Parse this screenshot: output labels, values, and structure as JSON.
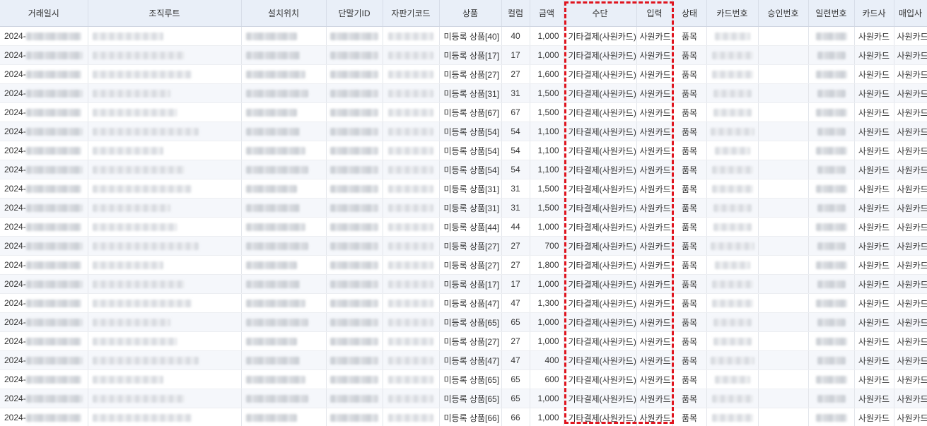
{
  "headers": {
    "datetime": "거래일시",
    "org_route": "조직루트",
    "location": "설치위치",
    "terminal_id": "단말기ID",
    "vending_code": "자판기코드",
    "product": "상품",
    "column": "컬럼",
    "amount": "금액",
    "method": "수단",
    "input": "입력",
    "status": "상태",
    "card_no": "카드번호",
    "approval_no": "승인번호",
    "serial_no": "일련번호",
    "card_company": "카드사",
    "acquirer": "매입사"
  },
  "rows": [
    {
      "date_prefix": "2024-",
      "product": "미등록 상품[40]",
      "column": "40",
      "amount": "1,000",
      "method": "기타결제(사원카드)",
      "input": "사원카드",
      "status": "품목",
      "card_company": "사원카드",
      "acquirer": "사원카드"
    },
    {
      "date_prefix": "2024-",
      "product": "미등록 상품[17]",
      "column": "17",
      "amount": "1,000",
      "method": "기타결제(사원카드)",
      "input": "사원카드",
      "status": "품목",
      "card_company": "사원카드",
      "acquirer": "사원카드"
    },
    {
      "date_prefix": "2024-",
      "product": "미등록 상품[27]",
      "column": "27",
      "amount": "1,600",
      "method": "기타결제(사원카드)",
      "input": "사원카드",
      "status": "품목",
      "card_company": "사원카드",
      "acquirer": "사원카드"
    },
    {
      "date_prefix": "2024-",
      "product": "미등록 상품[31]",
      "column": "31",
      "amount": "1,500",
      "method": "기타결제(사원카드)",
      "input": "사원카드",
      "status": "품목",
      "card_company": "사원카드",
      "acquirer": "사원카드"
    },
    {
      "date_prefix": "2024-",
      "product": "미등록 상품[67]",
      "column": "67",
      "amount": "1,500",
      "method": "기타결제(사원카드)",
      "input": "사원카드",
      "status": "품목",
      "card_company": "사원카드",
      "acquirer": "사원카드"
    },
    {
      "date_prefix": "2024-",
      "product": "미등록 상품[54]",
      "column": "54",
      "amount": "1,100",
      "method": "기타결제(사원카드)",
      "input": "사원카드",
      "status": "품목",
      "card_company": "사원카드",
      "acquirer": "사원카드"
    },
    {
      "date_prefix": "2024-",
      "product": "미등록 상품[54]",
      "column": "54",
      "amount": "1,100",
      "method": "기타결제(사원카드)",
      "input": "사원카드",
      "status": "품목",
      "card_company": "사원카드",
      "acquirer": "사원카드"
    },
    {
      "date_prefix": "2024-",
      "product": "미등록 상품[54]",
      "column": "54",
      "amount": "1,100",
      "method": "기타결제(사원카드)",
      "input": "사원카드",
      "status": "품목",
      "card_company": "사원카드",
      "acquirer": "사원카드"
    },
    {
      "date_prefix": "2024-",
      "product": "미등록 상품[31]",
      "column": "31",
      "amount": "1,500",
      "method": "기타결제(사원카드)",
      "input": "사원카드",
      "status": "품목",
      "card_company": "사원카드",
      "acquirer": "사원카드"
    },
    {
      "date_prefix": "2024-",
      "product": "미등록 상품[31]",
      "column": "31",
      "amount": "1,500",
      "method": "기타결제(사원카드)",
      "input": "사원카드",
      "status": "품목",
      "card_company": "사원카드",
      "acquirer": "사원카드"
    },
    {
      "date_prefix": "2024-",
      "product": "미등록 상품[44]",
      "column": "44",
      "amount": "1,000",
      "method": "기타결제(사원카드)",
      "input": "사원카드",
      "status": "품목",
      "card_company": "사원카드",
      "acquirer": "사원카드"
    },
    {
      "date_prefix": "2024-",
      "product": "미등록 상품[27]",
      "column": "27",
      "amount": "700",
      "method": "기타결제(사원카드)",
      "input": "사원카드",
      "status": "품목",
      "card_company": "사원카드",
      "acquirer": "사원카드"
    },
    {
      "date_prefix": "2024-",
      "product": "미등록 상품[27]",
      "column": "27",
      "amount": "1,800",
      "method": "기타결제(사원카드)",
      "input": "사원카드",
      "status": "품목",
      "card_company": "사원카드",
      "acquirer": "사원카드"
    },
    {
      "date_prefix": "2024-",
      "product": "미등록 상품[17]",
      "column": "17",
      "amount": "1,000",
      "method": "기타결제(사원카드)",
      "input": "사원카드",
      "status": "품목",
      "card_company": "사원카드",
      "acquirer": "사원카드"
    },
    {
      "date_prefix": "2024-",
      "product": "미등록 상품[47]",
      "column": "47",
      "amount": "1,300",
      "method": "기타결제(사원카드)",
      "input": "사원카드",
      "status": "품목",
      "card_company": "사원카드",
      "acquirer": "사원카드"
    },
    {
      "date_prefix": "2024-",
      "product": "미등록 상품[65]",
      "column": "65",
      "amount": "1,000",
      "method": "기타결제(사원카드)",
      "input": "사원카드",
      "status": "품목",
      "card_company": "사원카드",
      "acquirer": "사원카드"
    },
    {
      "date_prefix": "2024-",
      "product": "미등록 상품[27]",
      "column": "27",
      "amount": "1,000",
      "method": "기타결제(사원카드)",
      "input": "사원카드",
      "status": "품목",
      "card_company": "사원카드",
      "acquirer": "사원카드"
    },
    {
      "date_prefix": "2024-",
      "product": "미등록 상품[47]",
      "column": "47",
      "amount": "400",
      "method": "기타결제(사원카드)",
      "input": "사원카드",
      "status": "품목",
      "card_company": "사원카드",
      "acquirer": "사원카드"
    },
    {
      "date_prefix": "2024-",
      "product": "미등록 상품[65]",
      "column": "65",
      "amount": "600",
      "method": "기타결제(사원카드)",
      "input": "사원카드",
      "status": "품목",
      "card_company": "사원카드",
      "acquirer": "사원카드"
    },
    {
      "date_prefix": "2024-",
      "product": "미등록 상품[65]",
      "column": "65",
      "amount": "1,000",
      "method": "기타결제(사원카드)",
      "input": "사원카드",
      "status": "품목",
      "card_company": "사원카드",
      "acquirer": "사원카드"
    },
    {
      "date_prefix": "2024-",
      "product": "미등록 상품[66]",
      "column": "66",
      "amount": "1,000",
      "method": "기타결제(사원카드)",
      "input": "사원카드",
      "status": "품목",
      "card_company": "사원카드",
      "acquirer": "사원카드"
    }
  ],
  "colors": {
    "header_bg": "#e9eff8",
    "stripe_bg": "#f5f7fb",
    "highlight_border": "#e0141e"
  }
}
